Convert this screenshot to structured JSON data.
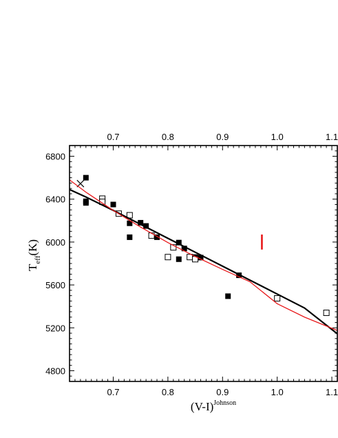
{
  "chart_data": {
    "type": "scatter",
    "xlabel": "(V-I)",
    "xlabel_sup": "Johnson",
    "ylabel_main": "T",
    "ylabel_sub": "eff",
    "ylabel_unit": "(K)",
    "xlim": [
      0.62,
      1.11
    ],
    "ylim": [
      4700,
      6900
    ],
    "x_ticks": [
      0.7,
      0.8,
      0.9,
      1.0,
      1.1
    ],
    "x_tick_labels": [
      "0.7",
      "0.8",
      "0.9",
      "1.0",
      "1.1"
    ],
    "top_x_tick_labels": [
      "0.7",
      "0.8",
      "0.9",
      "1.0",
      "1.1"
    ],
    "y_ticks": [
      4800,
      5200,
      5600,
      6000,
      6400,
      6800
    ],
    "y_tick_labels": [
      "4800",
      "5200",
      "5600",
      "6000",
      "6400",
      "6800"
    ],
    "grid": false,
    "colors": {
      "black": "#000000",
      "red": "#e8191b"
    },
    "series": [
      {
        "marker": "filled-square",
        "x": [
          0.65,
          0.65,
          0.65,
          0.7,
          0.73,
          0.73,
          0.75,
          0.76,
          0.78,
          0.82,
          0.82,
          0.83,
          0.85,
          0.86,
          0.91,
          0.93
        ],
        "y": [
          6600,
          6380,
          6365,
          6350,
          6175,
          6045,
          6180,
          6150,
          6045,
          5995,
          5840,
          5940,
          5860,
          5855,
          5495,
          5690
        ]
      },
      {
        "marker": "open-square",
        "x": [
          0.68,
          0.68,
          0.71,
          0.73,
          0.77,
          0.8,
          0.81,
          0.84,
          0.85,
          1.0,
          1.09
        ],
        "y": [
          6405,
          6375,
          6265,
          6250,
          6060,
          5860,
          5950,
          5860,
          5840,
          5475,
          5340
        ]
      },
      {
        "marker": "cross",
        "x": [
          0.64
        ],
        "y": [
          6545
        ]
      },
      {
        "marker": "line",
        "color": "black",
        "x": [
          0.62,
          0.65,
          0.7,
          0.75,
          0.8,
          0.85,
          0.9,
          0.95,
          1.0,
          1.05,
          1.11
        ],
        "y": [
          6490,
          6420,
          6295,
          6165,
          6035,
          5905,
          5775,
          5645,
          5515,
          5385,
          5145
        ]
      },
      {
        "marker": "line",
        "color": "red",
        "x": [
          0.62,
          0.65,
          0.7,
          0.75,
          0.8,
          0.85,
          0.9,
          0.95,
          1.0,
          1.05,
          1.11
        ],
        "y": [
          6580,
          6465,
          6295,
          6140,
          5995,
          5865,
          5745,
          5630,
          5425,
          5300,
          5175
        ]
      },
      {
        "marker": "error-bar",
        "color": "red",
        "x": [
          0.972
        ],
        "y_low": [
          5930
        ],
        "y_high": [
          6070
        ]
      }
    ]
  }
}
